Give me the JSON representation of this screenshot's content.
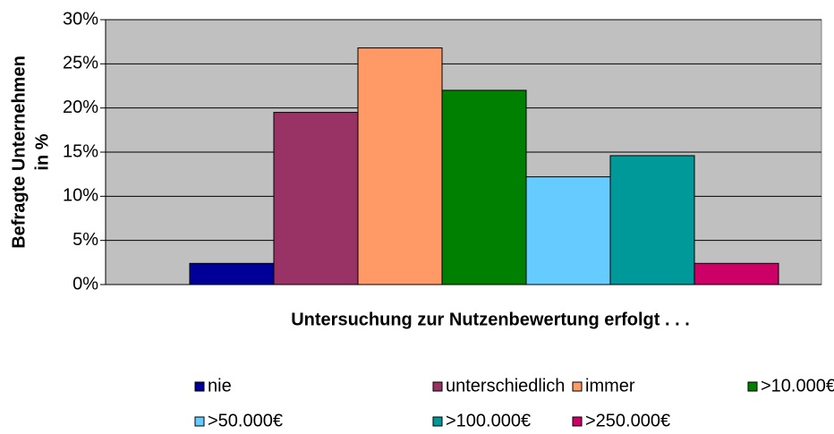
{
  "chart_data": {
    "type": "bar",
    "xlabel": "Untersuchung zur Nutzenbewertung erfolgt . . .",
    "ylabel": [
      "Befragte Unternehmen",
      "in %"
    ],
    "categories": [
      null
    ],
    "series": [
      {
        "name": "nie",
        "color": "#000099",
        "values": [
          2.4
        ]
      },
      {
        "name": "unterschiedlich",
        "color": "#993366",
        "values": [
          19.5
        ]
      },
      {
        "name": "immer",
        "color": "#ff9966",
        "values": [
          26.8
        ]
      },
      {
        "name": ">10.000€",
        "color": "#008000",
        "values": [
          22.0
        ]
      },
      {
        "name": ">50.000€",
        "color": "#66ccff",
        "values": [
          12.2
        ]
      },
      {
        "name": ">100.000€",
        "color": "#009999",
        "values": [
          14.6
        ]
      },
      {
        "name": ">250.000€",
        "color": "#cc0066",
        "values": [
          2.4
        ]
      }
    ],
    "ylim": [
      0,
      30
    ],
    "yticks": [
      {
        "value": 0,
        "label": "0%"
      },
      {
        "value": 5,
        "label": "5%"
      },
      {
        "value": 10,
        "label": "10%"
      },
      {
        "value": 15,
        "label": "15%"
      },
      {
        "value": 20,
        "label": "20%"
      },
      {
        "value": 25,
        "label": "25%"
      },
      {
        "value": 30,
        "label": "30%"
      }
    ],
    "grid": true,
    "plot_background": "#c0c0c0"
  }
}
